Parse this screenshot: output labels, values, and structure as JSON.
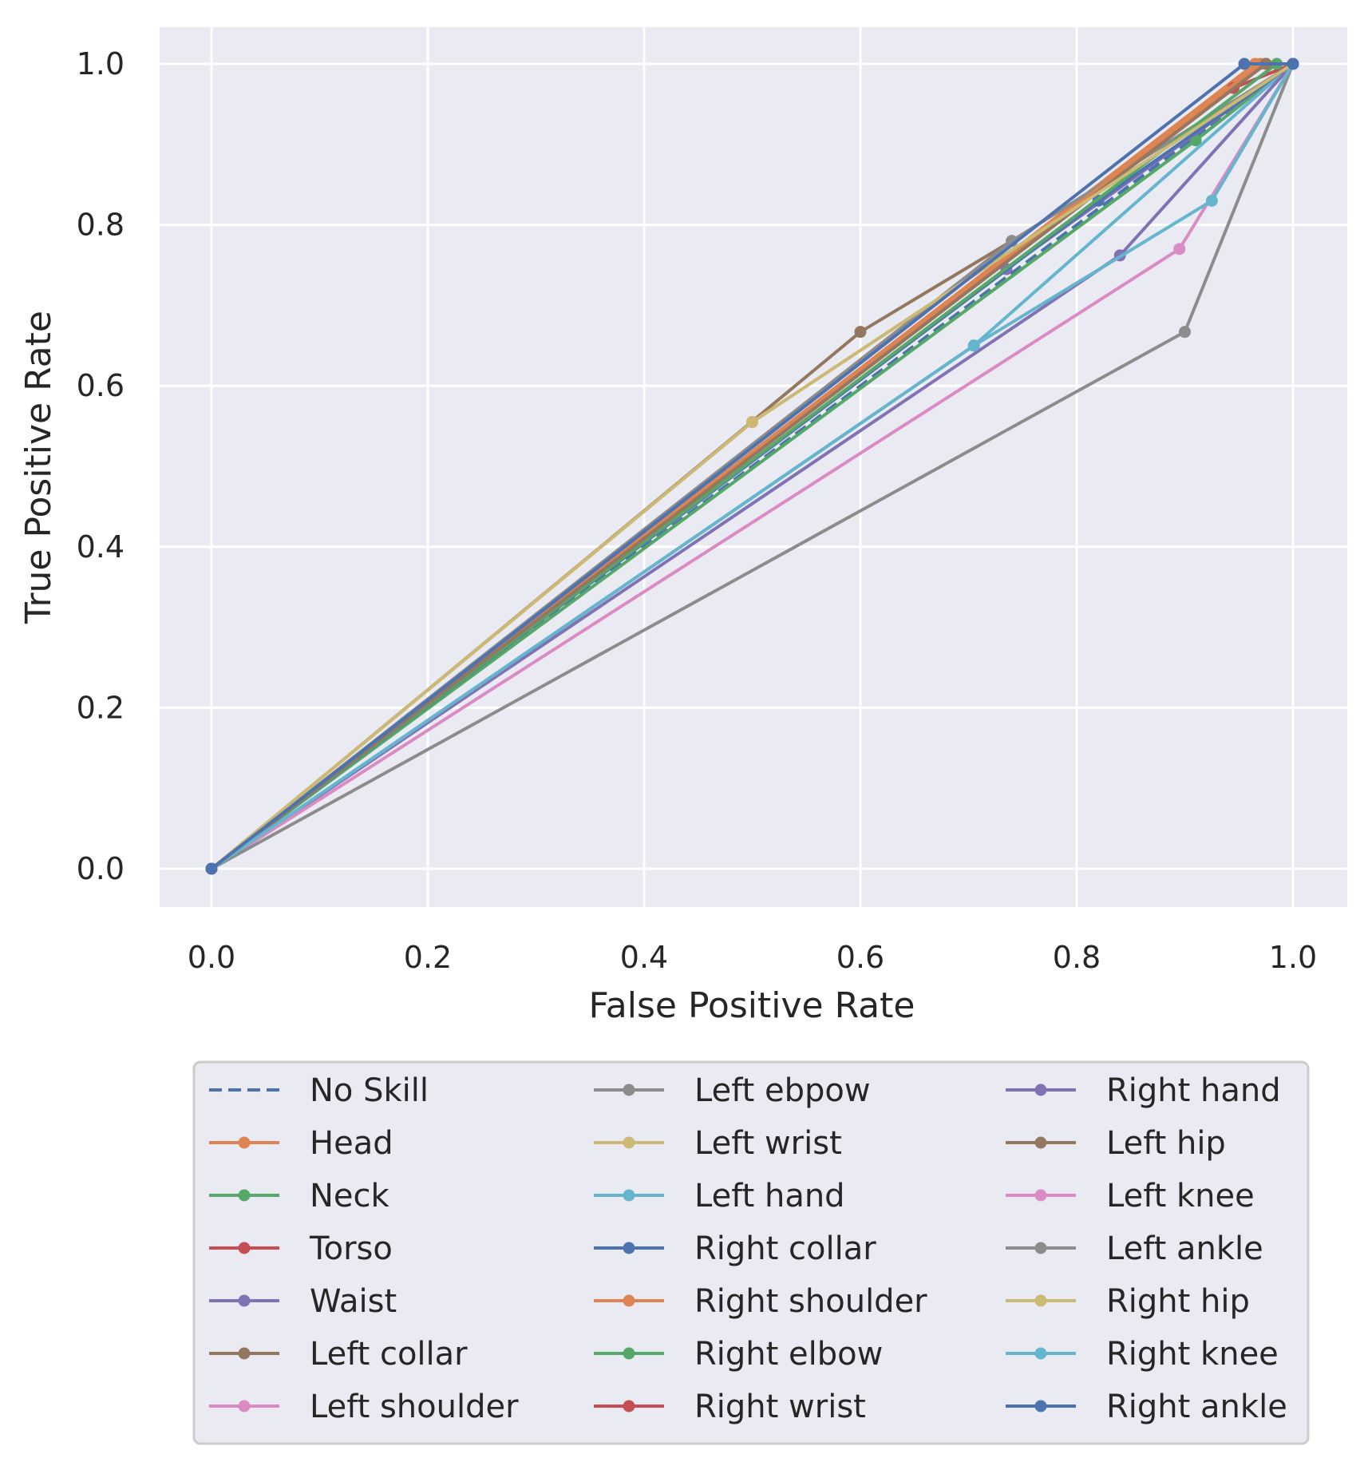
{
  "chart_data": {
    "type": "line",
    "title": "",
    "xlabel": "False Positive Rate",
    "ylabel": "True Positive Rate",
    "xlim": [
      -0.05,
      1.05
    ],
    "ylim": [
      -0.047,
      1.045
    ],
    "xticks": [
      "0.0",
      "0.2",
      "0.4",
      "0.6",
      "0.8",
      "1.0"
    ],
    "yticks": [
      "0.0",
      "0.2",
      "0.4",
      "0.6",
      "0.8",
      "1.0"
    ],
    "grid": true,
    "legend_position": "below plot, 3 columns",
    "series": [
      {
        "name": "No Skill",
        "color": "#4c72b0",
        "dashed": true,
        "markers": false,
        "x": [
          0,
          1
        ],
        "y": [
          0,
          1
        ]
      },
      {
        "name": "Head",
        "color": "#dd8452",
        "x": [
          0,
          0.965,
          1
        ],
        "y": [
          0,
          1.0,
          1
        ]
      },
      {
        "name": "Neck",
        "color": "#55a868",
        "x": [
          0,
          0.91,
          1
        ],
        "y": [
          0,
          0.905,
          1
        ]
      },
      {
        "name": "Torso",
        "color": "#c44e52",
        "x": [
          0,
          0.945,
          1
        ],
        "y": [
          0,
          0.97,
          1
        ]
      },
      {
        "name": "Waist",
        "color": "#8172b3",
        "x": [
          0,
          0.735,
          1
        ],
        "y": [
          0,
          0.745,
          1
        ]
      },
      {
        "name": "Left collar",
        "color": "#937860",
        "x": [
          0,
          0.6,
          0.74,
          1
        ],
        "y": [
          0,
          0.667,
          0.78,
          1
        ]
      },
      {
        "name": "Left shoulder",
        "color": "#da8bc3",
        "x": [
          0,
          0.975,
          1
        ],
        "y": [
          0,
          1.0,
          1
        ]
      },
      {
        "name": "Left ebpow",
        "color": "#8c8c8c",
        "x": [
          0,
          0.74,
          1
        ],
        "y": [
          0,
          0.78,
          1
        ]
      },
      {
        "name": "Left wrist",
        "color": "#ccb974",
        "x": [
          0,
          0.5,
          1
        ],
        "y": [
          0,
          0.555,
          1
        ]
      },
      {
        "name": "Left hand",
        "color": "#64b5cd",
        "x": [
          0,
          0.705,
          1
        ],
        "y": [
          0,
          0.65,
          1
        ]
      },
      {
        "name": "Right collar",
        "color": "#4c72b0",
        "x": [
          0,
          0.82,
          1
        ],
        "y": [
          0,
          0.83,
          1
        ]
      },
      {
        "name": "Right shoulder",
        "color": "#dd8452",
        "x": [
          0,
          0.97,
          1
        ],
        "y": [
          0,
          1.0,
          1
        ]
      },
      {
        "name": "Right elbow",
        "color": "#55a868",
        "x": [
          0,
          0.985,
          1
        ],
        "y": [
          0,
          1.0,
          1
        ]
      },
      {
        "name": "Right wrist",
        "color": "#c44e52",
        "x": [
          0,
          0.975,
          1
        ],
        "y": [
          0,
          1.0,
          1
        ]
      },
      {
        "name": "Right hand",
        "color": "#8172b3",
        "x": [
          0,
          0.84,
          1
        ],
        "y": [
          0,
          0.762,
          1
        ]
      },
      {
        "name": "Left hip",
        "color": "#937860",
        "x": [
          0,
          0.975,
          1
        ],
        "y": [
          0,
          1.0,
          1
        ]
      },
      {
        "name": "Left knee",
        "color": "#da8bc3",
        "x": [
          0,
          0.895,
          1
        ],
        "y": [
          0,
          0.77,
          1
        ]
      },
      {
        "name": "Left ankle",
        "color": "#8c8c8c",
        "x": [
          0,
          0.9,
          1
        ],
        "y": [
          0,
          0.667,
          1
        ]
      },
      {
        "name": "Right hip",
        "color": "#ccb974",
        "x": [
          0,
          0.5,
          1
        ],
        "y": [
          0,
          0.555,
          1
        ]
      },
      {
        "name": "Right knee",
        "color": "#64b5cd",
        "x": [
          0,
          0.705,
          0.925,
          1
        ],
        "y": [
          0,
          0.65,
          0.83,
          1
        ]
      },
      {
        "name": "Right ankle",
        "color": "#4c72b0",
        "x": [
          0,
          0.955,
          1
        ],
        "y": [
          0,
          1.0,
          1
        ]
      }
    ]
  }
}
